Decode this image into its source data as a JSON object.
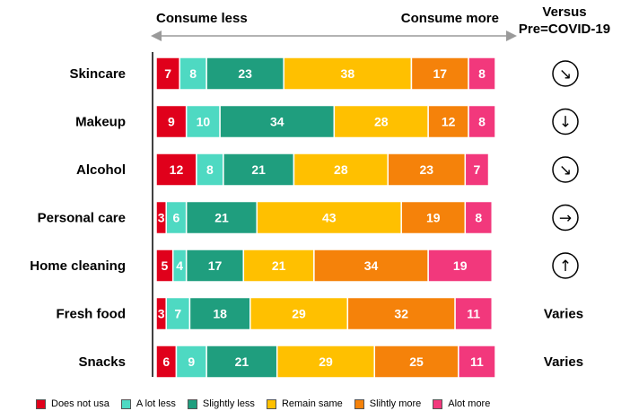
{
  "header": {
    "consume_less": "Consume less",
    "consume_more": "Consume more",
    "versus_line1": "Versus",
    "versus_line2": "Pre=COVID-19"
  },
  "chart_data": {
    "type": "bar",
    "orientation": "horizontal",
    "stacked": true,
    "categories": [
      "Skincare",
      "Makeup",
      "Alcohol",
      "Personal care",
      "Home cleaning",
      "Fresh food",
      "Snacks"
    ],
    "series": [
      {
        "name": "Does not usa",
        "color": "#E0001B",
        "values": [
          7,
          9,
          12,
          3,
          5,
          3,
          6
        ]
      },
      {
        "name": "A lot less",
        "color": "#4ED9C2",
        "values": [
          8,
          10,
          8,
          6,
          4,
          7,
          9
        ]
      },
      {
        "name": "Slightly less",
        "color": "#1F9E7E",
        "values": [
          23,
          34,
          21,
          21,
          17,
          18,
          21
        ]
      },
      {
        "name": "Remain same",
        "color": "#FFC000",
        "values": [
          38,
          28,
          28,
          43,
          21,
          29,
          29
        ]
      },
      {
        "name": "Slihtly more",
        "color": "#F5820A",
        "values": [
          17,
          12,
          23,
          19,
          34,
          32,
          25
        ]
      },
      {
        "name": "Alot more",
        "color": "#F2387C",
        "values": [
          8,
          8,
          7,
          8,
          19,
          11,
          11
        ]
      }
    ],
    "xlim": [
      0,
      101
    ],
    "legend_position": "bottom",
    "versus": [
      {
        "icon": "arrow-down-right-icon",
        "symbol": "↘",
        "text": ""
      },
      {
        "icon": "arrow-down-icon",
        "symbol": "↓",
        "text": ""
      },
      {
        "icon": "arrow-down-right-icon",
        "symbol": "↘",
        "text": ""
      },
      {
        "icon": "arrow-right-icon",
        "symbol": "→",
        "text": ""
      },
      {
        "icon": "arrow-up-icon",
        "symbol": "↑",
        "text": ""
      },
      {
        "icon": "",
        "symbol": "",
        "text": "Varies"
      },
      {
        "icon": "",
        "symbol": "",
        "text": "Varies"
      }
    ]
  }
}
